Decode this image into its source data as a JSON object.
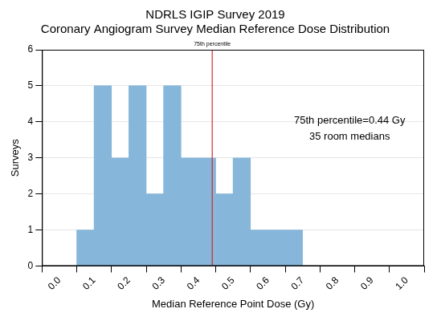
{
  "chart_data": {
    "type": "histogram",
    "title": [
      "NDRLS IGIP Survey 2019",
      "Coronary Angiogram Survey Median Reference Dose Distribution"
    ],
    "x_label": "Median Reference Point Dose (Gy)",
    "y_label": "Surveys",
    "bins": [
      0.05,
      0.1,
      0.15,
      0.2,
      0.25,
      0.3,
      0.35,
      0.4,
      0.45,
      0.5,
      0.55,
      0.6,
      0.65,
      0.7
    ],
    "values": [
      1,
      5,
      3,
      5,
      2,
      5,
      3,
      3,
      2,
      3,
      1,
      1,
      1
    ],
    "color": "#86b6d9",
    "xlim": [
      0,
      1
    ],
    "xticks": [
      {
        "value": 0,
        "label": "0.0"
      },
      0.1,
      0.2,
      0.3,
      0.4,
      0.5,
      0.6,
      0.7,
      0.8,
      0.9,
      {
        "value": 1,
        "label": "1.0"
      }
    ],
    "ylim": [
      0,
      6
    ],
    "yticks": [
      0,
      1,
      2,
      3,
      4,
      5,
      6
    ],
    "grid": true,
    "vline": {
      "x": 0.44,
      "label": "75th percentile",
      "color": "#d62728"
    },
    "annotations": [
      "75th percentile=0.44 Gy",
      "35 room medians"
    ]
  }
}
